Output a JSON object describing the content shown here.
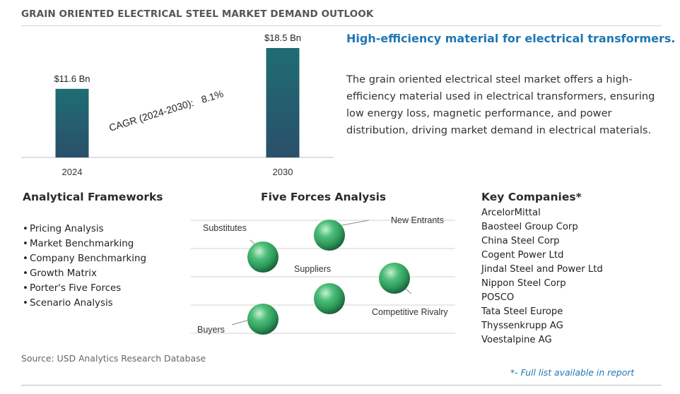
{
  "header": {
    "title": "GRAIN ORIENTED ELECTRICAL STEEL MARKET DEMAND OUTLOOK"
  },
  "chart_data": {
    "type": "bar",
    "categories": [
      "2024",
      "2030"
    ],
    "values": [
      11.6,
      18.5
    ],
    "value_labels": [
      "$11.6 Bn",
      "$18.5 Bn"
    ],
    "ylim": [
      0,
      18.5
    ],
    "annotation": {
      "label": "CAGR (2024-2030):",
      "value": "8.1%"
    },
    "grid": false,
    "colors": {
      "bar_top": "#1f6d73",
      "bar_bottom": "#2a4f6a",
      "axis": "#bfbfbf"
    }
  },
  "summary": {
    "headline": "High-efficiency material for electrical transformers.",
    "description": "The grain oriented electrical steel market offers a high-efficiency material used in electrical transformers, ensuring low energy loss, magnetic performance, and power distribution, driving market demand in electrical materials."
  },
  "frameworks": {
    "title": "Analytical Frameworks",
    "items": [
      "Pricing Analysis",
      "Market Benchmarking",
      "Company Benchmarking",
      "Growth Matrix",
      "Porter's Five Forces",
      "Scenario Analysis"
    ]
  },
  "five_forces": {
    "title": "Five Forces Analysis",
    "forces": [
      "New Entrants",
      "Substitutes",
      "Suppliers",
      "Competitive Rivalry",
      "Buyers"
    ],
    "colors": {
      "sphere": "#2e9a5a",
      "lines": "#d2d2d2"
    }
  },
  "companies": {
    "title": "Key Companies*",
    "items": [
      "ArcelorMittal",
      "Baosteel Group Corp",
      "China Steel Corp",
      "Cogent Power Ltd",
      "Jindal Steel and Power Ltd",
      "Nippon Steel Corp",
      "POSCO",
      "Tata Steel Europe",
      "Thyssenkrupp AG",
      "Voestalpine AG"
    ]
  },
  "footer": {
    "source": "Source: USD Analytics Research Database",
    "note": "*- Full list available in report"
  }
}
